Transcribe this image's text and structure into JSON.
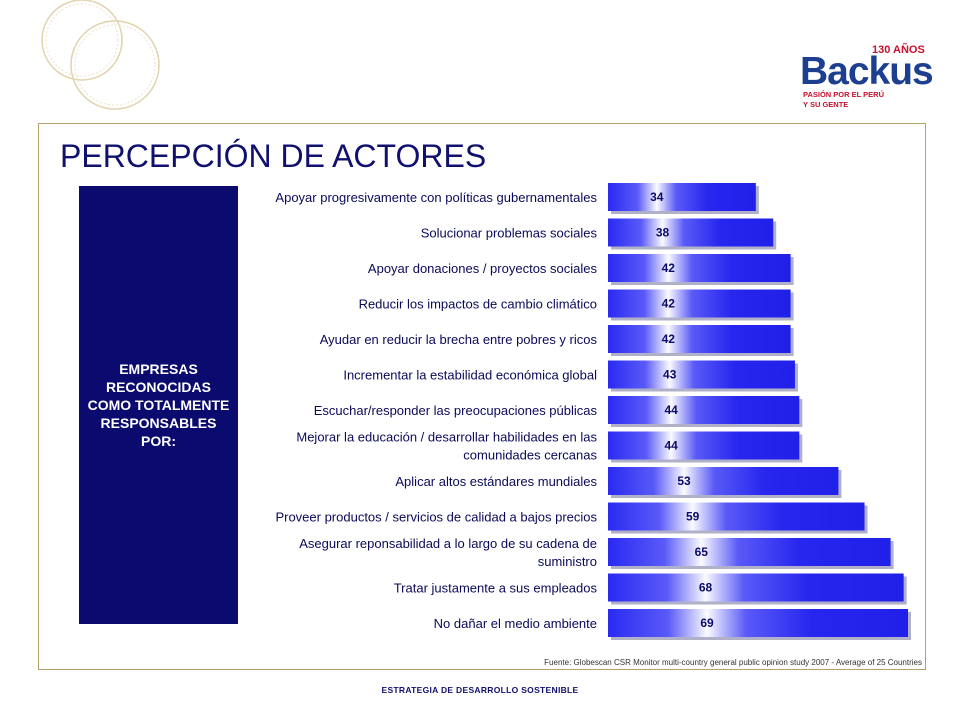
{
  "page": {
    "title": "PERCEPCIÓN DE ACTORES",
    "sidebar_label": "EMPRESAS RECONOCIDAS COMO TOTALMENTE RESPONSABLES POR:",
    "source_note": "Fuente: Globescan CSR Monitor multi-country general public opinion study 2007 - Average of 25 Countries",
    "footer": "ESTRATEGIA DE DESARROLLO SOSTENIBLE"
  },
  "logo": {
    "brand": "Backus",
    "anniversary": "130 AÑOS",
    "tagline_line1": "PASIÓN POR EL PERÚ",
    "tagline_line2": "Y SU GENTE",
    "brand_color": "#1d3f8f",
    "accent_color": "#c8102e"
  },
  "chart_data": {
    "type": "bar",
    "orientation": "horizontal",
    "categories": [
      "Apoyar progresivamente con políticas gubernamentales",
      "Solucionar problemas sociales",
      "Apoyar donaciones / proyectos sociales",
      "Reducir los impactos de cambio climático",
      "Ayudar en reducir la brecha entre pobres y ricos",
      "Incrementar la estabilidad económica global",
      "Escuchar/responder las preocupaciones públicas",
      "Mejorar la educación / desarrollar habilidades en las comunidades cercanas",
      "Aplicar altos estándares mundiales",
      "Proveer productos / servicios de calidad a bajos precios",
      "Asegurar reponsabilidad a lo largo de su cadena de suministro",
      "Tratar justamente a sus empleados",
      "No dañar el medio ambiente"
    ],
    "category_lines": [
      [
        "Apoyar progresivamente con políticas gubernamentales"
      ],
      [
        "Solucionar problemas sociales"
      ],
      [
        "Apoyar donaciones / proyectos sociales"
      ],
      [
        "Reducir los impactos de cambio climático"
      ],
      [
        "Ayudar en reducir la brecha entre pobres y ricos"
      ],
      [
        "Incrementar la estabilidad económica global"
      ],
      [
        "Escuchar/responder las preocupaciones públicas"
      ],
      [
        "Mejorar la educación / desarrollar habilidades en las",
        "comunidades cercanas"
      ],
      [
        "Aplicar altos estándares mundiales"
      ],
      [
        "Proveer productos / servicios de calidad a bajos precios"
      ],
      [
        "Asegurar reponsabilidad a lo largo de su cadena de",
        "suministro"
      ],
      [
        "Tratar justamente a sus empleados"
      ],
      [
        "No dañar el medio ambiente"
      ]
    ],
    "values": [
      34,
      38,
      42,
      42,
      42,
      43,
      44,
      44,
      53,
      59,
      65,
      68,
      69
    ],
    "data_labels": [
      "34",
      "38",
      "42",
      "42",
      "42",
      "43",
      "44",
      "44",
      "53",
      "59",
      "65",
      "68",
      "69"
    ],
    "xlim": [
      0,
      69
    ],
    "grid": false,
    "legend": "none",
    "bar_color": "#2828f0",
    "bar_highlight": "#ffffff",
    "label_color": "#0a0a5a"
  }
}
